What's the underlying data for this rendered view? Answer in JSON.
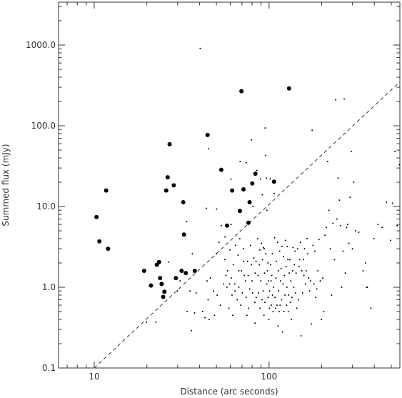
{
  "chart_data": {
    "type": "scatter",
    "xlabel": "Distance (arc seconds)",
    "ylabel": "Summed flux (mJy)",
    "xscale": "log",
    "yscale": "log",
    "xlim": [
      6.25,
      560
    ],
    "ylim": [
      0.1,
      3400
    ],
    "xticks": [
      {
        "value": 10,
        "label": "10"
      },
      {
        "value": 100,
        "label": "100"
      }
    ],
    "yticks": [
      {
        "value": 0.1,
        "label": "0.1"
      },
      {
        "value": 1,
        "label": "1.0"
      },
      {
        "value": 10,
        "label": "10.0"
      },
      {
        "value": 100,
        "label": "100.0"
      },
      {
        "value": 1000,
        "label": "1000.0"
      }
    ],
    "grid": false,
    "legend": "none",
    "threshold_line": {
      "style": "dashed",
      "points": [
        [
          10,
          0.1
        ],
        [
          560,
          350
        ]
      ]
    },
    "series": [
      {
        "marker": "large-dot",
        "points": [
          [
            10.3,
            7.4
          ],
          [
            10.7,
            3.7
          ],
          [
            11.7,
            15.8
          ],
          [
            12.0,
            3.0
          ],
          [
            19.3,
            1.6
          ],
          [
            21.1,
            1.05
          ],
          [
            22.8,
            1.9
          ],
          [
            23.5,
            2.05
          ],
          [
            23.8,
            1.3
          ],
          [
            24.3,
            1.1
          ],
          [
            24.8,
            0.76
          ],
          [
            25.2,
            0.88
          ],
          [
            25.8,
            15.8
          ],
          [
            26.3,
            23.0
          ],
          [
            27.0,
            59.0
          ],
          [
            28.5,
            18.3
          ],
          [
            29.3,
            1.3
          ],
          [
            31.6,
            1.6
          ],
          [
            32.3,
            11.3
          ],
          [
            32.6,
            4.5
          ],
          [
            33.4,
            1.5
          ],
          [
            37.6,
            1.6
          ],
          [
            44.5,
            77.0
          ],
          [
            53.3,
            28.5
          ],
          [
            57.5,
            5.8
          ],
          [
            61.5,
            15.8
          ],
          [
            68.1,
            8.8
          ],
          [
            69.5,
            268.0
          ],
          [
            71.4,
            16.3
          ],
          [
            76.2,
            6.3
          ],
          [
            77.4,
            11.3
          ],
          [
            80.2,
            19.3
          ],
          [
            83.5,
            25.5
          ],
          [
            106.7,
            20.3
          ],
          [
            130.1,
            290.0
          ]
        ]
      },
      {
        "marker": "small-dot",
        "points": [
          [
            19.9,
            0.37
          ],
          [
            22.5,
            0.37
          ],
          [
            26.7,
            2.05
          ],
          [
            29.9,
            0.9
          ],
          [
            31.0,
            1.2
          ],
          [
            33.8,
            6.5
          ],
          [
            34.0,
            0.5
          ],
          [
            35.3,
            0.9
          ],
          [
            36.0,
            0.29
          ],
          [
            36.4,
            2.6
          ],
          [
            37.5,
            0.48
          ],
          [
            38.3,
            0.85
          ],
          [
            40.4,
            908.0
          ],
          [
            41.7,
            0.5
          ],
          [
            43.0,
            0.42
          ],
          [
            43.8,
            9.5
          ],
          [
            44.2,
            1.2
          ],
          [
            44.8,
            0.7
          ],
          [
            45.0,
            52.0
          ],
          [
            45.4,
            0.4
          ],
          [
            46.2,
            1.3
          ],
          [
            48.2,
            0.9
          ],
          [
            48.7,
            0.45
          ],
          [
            49.9,
            2.6
          ],
          [
            50.1,
            9.3
          ],
          [
            50.5,
            0.8
          ],
          [
            51.7,
            3.6
          ],
          [
            52.6,
            0.6
          ],
          [
            53.3,
            5.8
          ],
          [
            55.0,
            1.1
          ],
          [
            55.9,
            2.2
          ],
          [
            56.0,
            4.2
          ],
          [
            56.7,
            1.4
          ],
          [
            57.4,
            1.0
          ],
          [
            57.9,
            1.6
          ],
          [
            58.9,
            0.55
          ],
          [
            59.5,
            1.1
          ],
          [
            59.8,
            2.9
          ],
          [
            60.5,
            21.8
          ],
          [
            60.6,
            6.0
          ],
          [
            61.0,
            1.3
          ],
          [
            61.4,
            0.8
          ],
          [
            62.0,
            0.45
          ],
          [
            62.5,
            1.9
          ],
          [
            63.6,
            1.1
          ],
          [
            63.9,
            0.9
          ],
          [
            64.3,
            3.3
          ],
          [
            65.8,
            0.7
          ],
          [
            66.5,
            2.5
          ],
          [
            67.2,
            1.0
          ],
          [
            67.2,
            1.6
          ],
          [
            68.0,
            4.0
          ],
          [
            68.3,
            36.0
          ],
          [
            68.9,
            0.6
          ],
          [
            69.5,
            1.6
          ],
          [
            70.3,
            0.85
          ],
          [
            71.3,
            3.0
          ],
          [
            71.6,
            2.1
          ],
          [
            72.1,
            1.4
          ],
          [
            73.3,
            1.2
          ],
          [
            73.9,
            0.75
          ],
          [
            74.1,
            35.0
          ],
          [
            74.7,
            0.45
          ],
          [
            75.3,
            2.1
          ],
          [
            76.0,
            1.4
          ],
          [
            76.4,
            0.55
          ],
          [
            77.5,
            0.95
          ],
          [
            78.4,
            3.3
          ],
          [
            79.2,
            1.9
          ],
          [
            79.4,
            67.0
          ],
          [
            80.0,
            1.2
          ],
          [
            80.5,
            0.85
          ],
          [
            80.9,
            10.0
          ],
          [
            81.8,
            2.3
          ],
          [
            82.9,
            0.65
          ],
          [
            83.1,
            0.36
          ],
          [
            83.3,
            1.5
          ],
          [
            84.2,
            2.1
          ],
          [
            84.4,
            0.75
          ],
          [
            85.1,
            28.0
          ],
          [
            86.1,
            4.0
          ],
          [
            86.6,
            1.4
          ],
          [
            87.1,
            0.85
          ],
          [
            87.9,
            1.9
          ],
          [
            88.5,
            2.9
          ],
          [
            88.7,
            0.55
          ],
          [
            89.3,
            22.0
          ],
          [
            89.7,
            1.2
          ],
          [
            90.4,
            3.5
          ],
          [
            91.2,
            0.7
          ],
          [
            91.4,
            14.0
          ],
          [
            91.7,
            2.2
          ],
          [
            92.5,
            0.9
          ],
          [
            92.9,
            3.1
          ],
          [
            93.5,
            0.45
          ],
          [
            93.8,
            3.0
          ],
          [
            94.2,
            1.5
          ],
          [
            94.6,
            0.65
          ],
          [
            95.0,
            94.0
          ],
          [
            95.6,
            43.0
          ],
          [
            95.8,
            2.6
          ],
          [
            96.7,
            22.5
          ],
          [
            97.0,
            1.1
          ],
          [
            97.2,
            9.0
          ],
          [
            97.8,
            1.6
          ],
          [
            98.6,
            2.0
          ],
          [
            98.8,
            0.75
          ],
          [
            99.2,
            1.2
          ],
          [
            99.7,
            0.4
          ],
          [
            100.5,
            0.55
          ],
          [
            100.8,
            0.9
          ],
          [
            101.5,
            22.0
          ],
          [
            102.0,
            1.9
          ],
          [
            102.6,
            1.2
          ],
          [
            103.0,
            0.6
          ],
          [
            103.7,
            1.4
          ],
          [
            104.4,
            2.6
          ],
          [
            104.6,
            0.8
          ],
          [
            105.4,
            0.5
          ],
          [
            106.0,
            1.0
          ],
          [
            107.0,
            14.5
          ],
          [
            107.6,
            4.1
          ],
          [
            108.2,
            0.75
          ],
          [
            109.0,
            0.55
          ],
          [
            109.5,
            1.3
          ],
          [
            110.0,
            2.1
          ],
          [
            111.0,
            0.6
          ],
          [
            111.8,
            3.6
          ],
          [
            112.6,
            0.33
          ],
          [
            113.0,
            1.6
          ],
          [
            113.4,
            0.9
          ],
          [
            114.2,
            0.5
          ],
          [
            115.0,
            2.8
          ],
          [
            115.6,
            0.6
          ],
          [
            116.4,
            1.2
          ],
          [
            117.2,
            1.7
          ],
          [
            118.0,
            0.7
          ],
          [
            118.6,
            3.2
          ],
          [
            119.2,
            0.28
          ],
          [
            120.1,
            1.1
          ],
          [
            120.9,
            2.4
          ],
          [
            121.7,
            0.5
          ],
          [
            122.5,
            1.4
          ],
          [
            123.3,
            0.8
          ],
          [
            124.1,
            3.8
          ],
          [
            125.0,
            1.8
          ],
          [
            125.9,
            0.6
          ],
          [
            126.5,
            1.0
          ],
          [
            127.3,
            3.2
          ],
          [
            128.1,
            2.2
          ],
          [
            128.8,
            0.5
          ],
          [
            129.5,
            0.8
          ],
          [
            130.5,
            1.5
          ],
          [
            131.4,
            2.2
          ],
          [
            132.3,
            0.65
          ],
          [
            133.2,
            1.2
          ],
          [
            134.2,
            0.4
          ],
          [
            135.3,
            0.75
          ],
          [
            136.4,
            1.6
          ],
          [
            137.2,
            3.1
          ],
          [
            138.4,
            1.0
          ],
          [
            139.5,
            1.9
          ],
          [
            140.6,
            2.8
          ],
          [
            141.6,
            0.85
          ],
          [
            142.8,
            1.5
          ],
          [
            144.1,
            0.55
          ],
          [
            145.6,
            3.0
          ],
          [
            147.3,
            0.7
          ],
          [
            148.4,
            1.8
          ],
          [
            149.7,
            2.2
          ],
          [
            151.1,
            3.6
          ],
          [
            152.6,
            0.25
          ],
          [
            154.0,
            1.6
          ],
          [
            155.4,
            0.85
          ],
          [
            157.0,
            2.2
          ],
          [
            158.2,
            1.4
          ],
          [
            159.6,
            3.0
          ],
          [
            161.3,
            1.1
          ],
          [
            163.1,
            1.6
          ],
          [
            164.8,
            4.0
          ],
          [
            166.5,
            2.6
          ],
          [
            168.3,
            1.3
          ],
          [
            170.5,
            0.9
          ],
          [
            172.5,
            1.2
          ],
          [
            174.6,
            0.35
          ],
          [
            176.4,
            88.0
          ],
          [
            178.5,
            3.3
          ],
          [
            180.5,
            1.1
          ],
          [
            182.7,
            2.8
          ],
          [
            185.0,
            0.75
          ],
          [
            187.5,
            0.95
          ],
          [
            190.2,
            1.6
          ],
          [
            193.0,
            3.9
          ],
          [
            196.3,
            1.2
          ],
          [
            199.5,
            0.4
          ],
          [
            202.7,
            1.3
          ],
          [
            205.6,
            0.5
          ],
          [
            209.0,
            4.4
          ],
          [
            212.7,
            5.5
          ],
          [
            216.2,
            36.0
          ],
          [
            220.0,
            9.0
          ],
          [
            224.0,
            3.0
          ],
          [
            228.1,
            0.8
          ],
          [
            232.2,
            6.2
          ],
          [
            236.5,
            2.2
          ],
          [
            240.6,
            210.0
          ],
          [
            244.5,
            7.0
          ],
          [
            248.4,
            22.5
          ],
          [
            252.5,
            12.0
          ],
          [
            256.2,
            5.8
          ],
          [
            260.4,
            1.0
          ],
          [
            264.6,
            2.8
          ],
          [
            269.0,
            215.0
          ],
          [
            273.0,
            1.5
          ],
          [
            277.4,
            5.5
          ],
          [
            281.5,
            6.0
          ],
          [
            286.0,
            3.5
          ],
          [
            290.7,
            13.0
          ],
          [
            295.2,
            48.0
          ],
          [
            299.9,
            3.0
          ],
          [
            305.0,
            20.0
          ],
          [
            312.0,
            5.0
          ],
          [
            326.0,
            4.8
          ],
          [
            345.0,
            1.6
          ],
          [
            356.0,
            2.0
          ],
          [
            361.0,
            1.0
          ],
          [
            365.0,
            1.0
          ],
          [
            382.0,
            0.55
          ],
          [
            398.0,
            4.0
          ],
          [
            420.0,
            6.0
          ],
          [
            443.0,
            5.5
          ],
          [
            470.0,
            11.3
          ],
          [
            495.0,
            3.8
          ],
          [
            508.0,
            11.0
          ],
          [
            525.0,
            48.0
          ],
          [
            540.0,
            5.8
          ],
          [
            557.0,
            33.0
          ]
        ]
      }
    ]
  }
}
